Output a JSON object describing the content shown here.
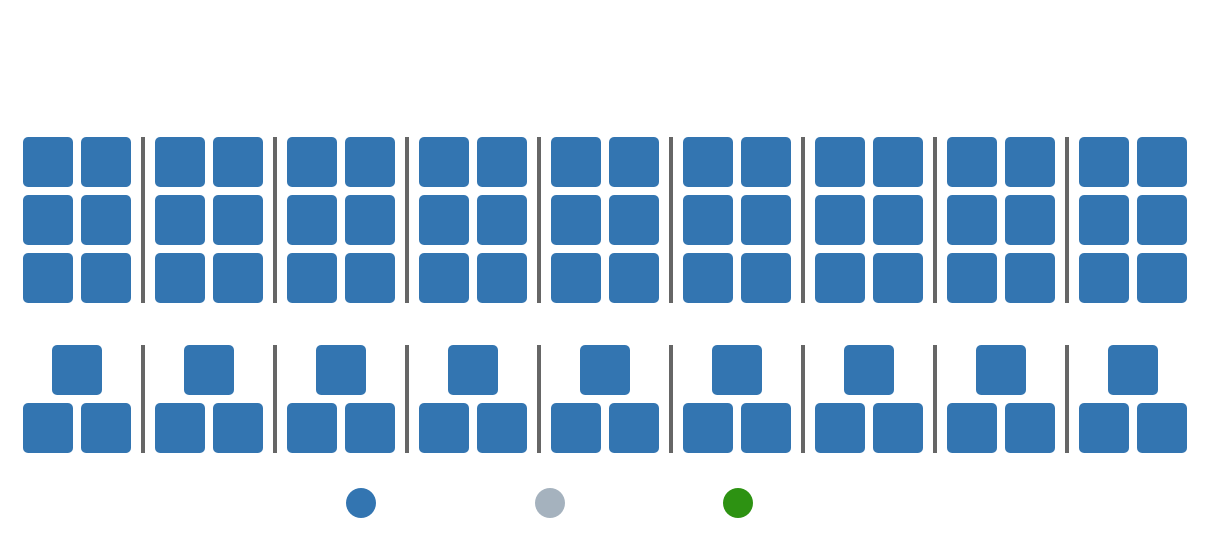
{
  "chart_data": {
    "type": "waffle",
    "title": "",
    "colors": {
      "series_a": "#3375b1",
      "series_b": "#a5b2be",
      "series_c": "#2d9212",
      "divider": "#666666"
    },
    "rows": [
      {
        "groups": 9,
        "cells_per_group": 6,
        "pattern": "2x3-grid",
        "cell_color_key": "series_a"
      },
      {
        "groups": 9,
        "cells_per_group": 3,
        "pattern": "1-over-2",
        "cell_color_key": "series_a"
      }
    ],
    "legend": [
      {
        "label": "",
        "color_key": "series_a"
      },
      {
        "label": "",
        "color_key": "series_b"
      },
      {
        "label": "",
        "color_key": "series_c"
      }
    ],
    "legend_position": "bottom-center"
  }
}
